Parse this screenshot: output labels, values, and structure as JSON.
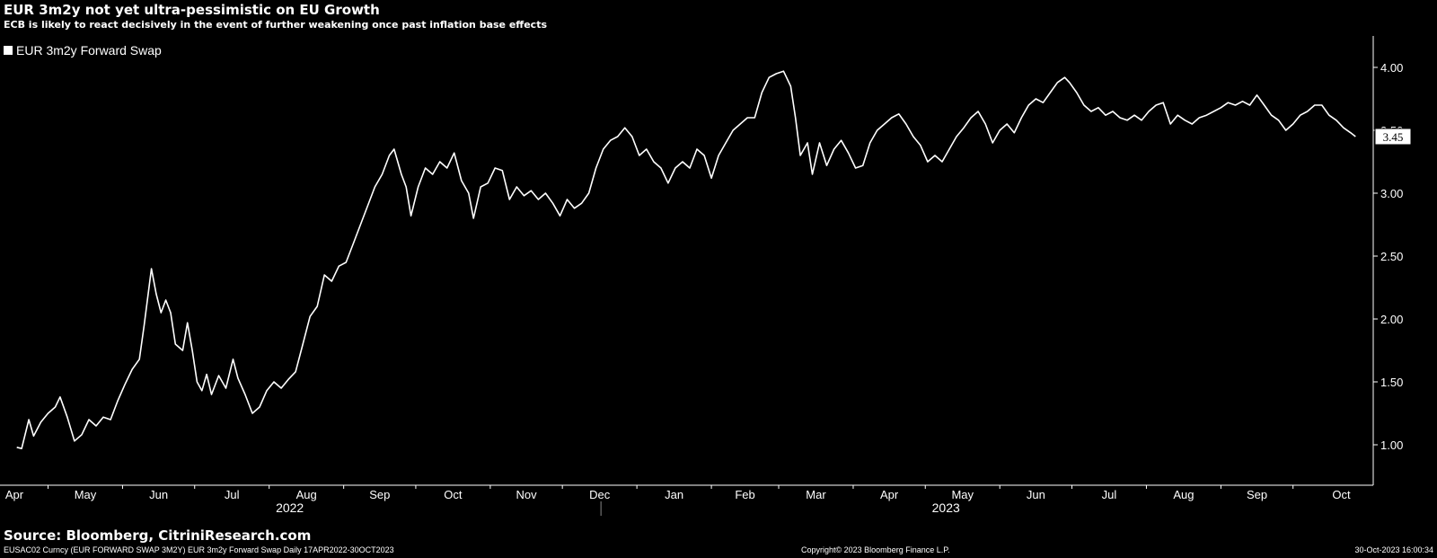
{
  "header": {
    "title": "EUR 3m2y not yet ultra-pessimistic on EU Growth",
    "subtitle": "ECB is likely to react decisively in the event of further weakening once past inflation base effects"
  },
  "legend": {
    "label": "EUR 3m2y Forward Swap",
    "swatch_color": "#ffffff"
  },
  "footer": {
    "source": "Source: Bloomberg, CitriniResearch.com",
    "meta": "EUSAC02 Curncy (EUR FORWARD SWAP 3M2Y) EUR 3m2y Forward Swap  Daily 17APR2022-30OCT2023",
    "copyright": "Copyright© 2023 Bloomberg Finance L.P.",
    "timestamp": "30-Oct-2023 16:00:34"
  },
  "colors": {
    "background": "#000000",
    "line": "#ffffff",
    "axis": "#ffffff"
  },
  "chart_data": {
    "type": "line",
    "title": "EUR 3m2y not yet ultra-pessimistic on EU Growth",
    "subtitle": "ECB is likely to react decisively in the event of further weakening once past inflation base effects",
    "xlabel": "",
    "ylabel": "",
    "y_axis_side": "right",
    "ylim": [
      0.75,
      4.25
    ],
    "yticks": [
      1.0,
      1.5,
      2.0,
      2.5,
      3.0,
      3.5,
      4.0
    ],
    "ytick_labels": [
      "1.00",
      "1.50",
      "2.00",
      "2.50",
      "3.00",
      "3.50",
      "4.00"
    ],
    "xlim": [
      "2022-04-17",
      "2023-10-30"
    ],
    "month_labels": [
      {
        "label": "Apr",
        "date": "2022-04-01"
      },
      {
        "label": "May",
        "date": "2022-05-01"
      },
      {
        "label": "Jun",
        "date": "2022-06-01"
      },
      {
        "label": "Jul",
        "date": "2022-07-01"
      },
      {
        "label": "Aug",
        "date": "2022-08-01"
      },
      {
        "label": "Sep",
        "date": "2022-09-01"
      },
      {
        "label": "Oct",
        "date": "2022-10-01"
      },
      {
        "label": "Nov",
        "date": "2022-11-01"
      },
      {
        "label": "Dec",
        "date": "2022-12-01"
      },
      {
        "label": "Jan",
        "date": "2023-01-01"
      },
      {
        "label": "Feb",
        "date": "2023-02-01"
      },
      {
        "label": "Mar",
        "date": "2023-03-01"
      },
      {
        "label": "Apr",
        "date": "2023-04-01"
      },
      {
        "label": "May",
        "date": "2023-05-01"
      },
      {
        "label": "Jun",
        "date": "2023-06-01"
      },
      {
        "label": "Jul",
        "date": "2023-07-01"
      },
      {
        "label": "Aug",
        "date": "2023-08-01"
      },
      {
        "label": "Sep",
        "date": "2023-09-01"
      },
      {
        "label": "Oct",
        "date": "2023-10-01"
      }
    ],
    "year_labels": [
      {
        "label": "2022",
        "date": "2022-09-01"
      },
      {
        "label": "2023",
        "date": "2023-06-01"
      }
    ],
    "last_value_label": "3.45",
    "grid": false,
    "legend_position": "top-left",
    "series": [
      {
        "name": "EUR 3m2y Forward Swap",
        "points": [
          [
            "2022-04-18",
            0.98
          ],
          [
            "2022-04-20",
            0.97
          ],
          [
            "2022-04-23",
            1.2
          ],
          [
            "2022-04-25",
            1.07
          ],
          [
            "2022-04-28",
            1.18
          ],
          [
            "2022-05-01",
            1.25
          ],
          [
            "2022-05-04",
            1.3
          ],
          [
            "2022-05-06",
            1.38
          ],
          [
            "2022-05-09",
            1.22
          ],
          [
            "2022-05-12",
            1.03
          ],
          [
            "2022-05-15",
            1.08
          ],
          [
            "2022-05-18",
            1.2
          ],
          [
            "2022-05-21",
            1.15
          ],
          [
            "2022-05-24",
            1.22
          ],
          [
            "2022-05-27",
            1.2
          ],
          [
            "2022-05-30",
            1.35
          ],
          [
            "2022-06-02",
            1.48
          ],
          [
            "2022-06-05",
            1.6
          ],
          [
            "2022-06-08",
            1.68
          ],
          [
            "2022-06-10",
            1.95
          ],
          [
            "2022-06-13",
            2.4
          ],
          [
            "2022-06-15",
            2.2
          ],
          [
            "2022-06-17",
            2.05
          ],
          [
            "2022-06-19",
            2.15
          ],
          [
            "2022-06-21",
            2.05
          ],
          [
            "2022-06-23",
            1.8
          ],
          [
            "2022-06-26",
            1.75
          ],
          [
            "2022-06-28",
            1.97
          ],
          [
            "2022-06-30",
            1.75
          ],
          [
            "2022-07-02",
            1.5
          ],
          [
            "2022-07-04",
            1.43
          ],
          [
            "2022-07-06",
            1.56
          ],
          [
            "2022-07-08",
            1.4
          ],
          [
            "2022-07-11",
            1.55
          ],
          [
            "2022-07-14",
            1.45
          ],
          [
            "2022-07-17",
            1.68
          ],
          [
            "2022-07-19",
            1.53
          ],
          [
            "2022-07-22",
            1.4
          ],
          [
            "2022-07-25",
            1.25
          ],
          [
            "2022-07-28",
            1.3
          ],
          [
            "2022-07-31",
            1.43
          ],
          [
            "2022-08-03",
            1.5
          ],
          [
            "2022-08-06",
            1.45
          ],
          [
            "2022-08-09",
            1.52
          ],
          [
            "2022-08-12",
            1.58
          ],
          [
            "2022-08-15",
            1.8
          ],
          [
            "2022-08-18",
            2.02
          ],
          [
            "2022-08-21",
            2.1
          ],
          [
            "2022-08-24",
            2.35
          ],
          [
            "2022-08-27",
            2.3
          ],
          [
            "2022-08-30",
            2.42
          ],
          [
            "2022-09-02",
            2.45
          ],
          [
            "2022-09-05",
            2.6
          ],
          [
            "2022-09-08",
            2.75
          ],
          [
            "2022-09-11",
            2.9
          ],
          [
            "2022-09-14",
            3.05
          ],
          [
            "2022-09-17",
            3.15
          ],
          [
            "2022-09-20",
            3.3
          ],
          [
            "2022-09-22",
            3.35
          ],
          [
            "2022-09-25",
            3.15
          ],
          [
            "2022-09-27",
            3.05
          ],
          [
            "2022-09-29",
            2.82
          ],
          [
            "2022-10-02",
            3.05
          ],
          [
            "2022-10-05",
            3.2
          ],
          [
            "2022-10-08",
            3.15
          ],
          [
            "2022-10-11",
            3.25
          ],
          [
            "2022-10-14",
            3.2
          ],
          [
            "2022-10-17",
            3.32
          ],
          [
            "2022-10-20",
            3.1
          ],
          [
            "2022-10-23",
            3.0
          ],
          [
            "2022-10-25",
            2.8
          ],
          [
            "2022-10-28",
            3.05
          ],
          [
            "2022-10-31",
            3.08
          ],
          [
            "2022-11-03",
            3.2
          ],
          [
            "2022-11-06",
            3.18
          ],
          [
            "2022-11-09",
            2.95
          ],
          [
            "2022-11-12",
            3.05
          ],
          [
            "2022-11-15",
            2.98
          ],
          [
            "2022-11-18",
            3.02
          ],
          [
            "2022-11-21",
            2.95
          ],
          [
            "2022-11-24",
            3.0
          ],
          [
            "2022-11-27",
            2.92
          ],
          [
            "2022-11-30",
            2.82
          ],
          [
            "2022-12-03",
            2.95
          ],
          [
            "2022-12-06",
            2.88
          ],
          [
            "2022-12-09",
            2.92
          ],
          [
            "2022-12-12",
            3.0
          ],
          [
            "2022-12-15",
            3.2
          ],
          [
            "2022-12-18",
            3.35
          ],
          [
            "2022-12-21",
            3.42
          ],
          [
            "2022-12-24",
            3.45
          ],
          [
            "2022-12-27",
            3.52
          ],
          [
            "2022-12-30",
            3.45
          ],
          [
            "2023-01-02",
            3.3
          ],
          [
            "2023-01-05",
            3.35
          ],
          [
            "2023-01-08",
            3.25
          ],
          [
            "2023-01-11",
            3.2
          ],
          [
            "2023-01-14",
            3.08
          ],
          [
            "2023-01-17",
            3.2
          ],
          [
            "2023-01-20",
            3.25
          ],
          [
            "2023-01-23",
            3.2
          ],
          [
            "2023-01-26",
            3.35
          ],
          [
            "2023-01-29",
            3.3
          ],
          [
            "2023-02-01",
            3.12
          ],
          [
            "2023-02-04",
            3.3
          ],
          [
            "2023-02-07",
            3.4
          ],
          [
            "2023-02-10",
            3.5
          ],
          [
            "2023-02-13",
            3.55
          ],
          [
            "2023-02-16",
            3.6
          ],
          [
            "2023-02-19",
            3.6
          ],
          [
            "2023-02-22",
            3.8
          ],
          [
            "2023-02-25",
            3.92
          ],
          [
            "2023-02-28",
            3.95
          ],
          [
            "2023-03-03",
            3.97
          ],
          [
            "2023-03-06",
            3.85
          ],
          [
            "2023-03-08",
            3.6
          ],
          [
            "2023-03-10",
            3.3
          ],
          [
            "2023-03-13",
            3.4
          ],
          [
            "2023-03-15",
            3.15
          ],
          [
            "2023-03-18",
            3.4
          ],
          [
            "2023-03-21",
            3.22
          ],
          [
            "2023-03-24",
            3.35
          ],
          [
            "2023-03-27",
            3.42
          ],
          [
            "2023-03-30",
            3.32
          ],
          [
            "2023-04-02",
            3.2
          ],
          [
            "2023-04-05",
            3.22
          ],
          [
            "2023-04-08",
            3.4
          ],
          [
            "2023-04-11",
            3.5
          ],
          [
            "2023-04-14",
            3.55
          ],
          [
            "2023-04-17",
            3.6
          ],
          [
            "2023-04-20",
            3.63
          ],
          [
            "2023-04-23",
            3.55
          ],
          [
            "2023-04-26",
            3.45
          ],
          [
            "2023-04-29",
            3.38
          ],
          [
            "2023-05-02",
            3.25
          ],
          [
            "2023-05-05",
            3.3
          ],
          [
            "2023-05-08",
            3.25
          ],
          [
            "2023-05-11",
            3.35
          ],
          [
            "2023-05-14",
            3.45
          ],
          [
            "2023-05-17",
            3.52
          ],
          [
            "2023-05-20",
            3.6
          ],
          [
            "2023-05-23",
            3.65
          ],
          [
            "2023-05-26",
            3.55
          ],
          [
            "2023-05-29",
            3.4
          ],
          [
            "2023-06-01",
            3.5
          ],
          [
            "2023-06-04",
            3.55
          ],
          [
            "2023-06-07",
            3.48
          ],
          [
            "2023-06-10",
            3.6
          ],
          [
            "2023-06-13",
            3.7
          ],
          [
            "2023-06-16",
            3.75
          ],
          [
            "2023-06-19",
            3.72
          ],
          [
            "2023-06-22",
            3.8
          ],
          [
            "2023-06-25",
            3.88
          ],
          [
            "2023-06-28",
            3.92
          ],
          [
            "2023-06-30",
            3.88
          ],
          [
            "2023-07-03",
            3.8
          ],
          [
            "2023-07-06",
            3.7
          ],
          [
            "2023-07-09",
            3.65
          ],
          [
            "2023-07-12",
            3.68
          ],
          [
            "2023-07-15",
            3.62
          ],
          [
            "2023-07-18",
            3.65
          ],
          [
            "2023-07-21",
            3.6
          ],
          [
            "2023-07-24",
            3.58
          ],
          [
            "2023-07-27",
            3.62
          ],
          [
            "2023-07-30",
            3.58
          ],
          [
            "2023-08-02",
            3.65
          ],
          [
            "2023-08-05",
            3.7
          ],
          [
            "2023-08-08",
            3.72
          ],
          [
            "2023-08-11",
            3.55
          ],
          [
            "2023-08-14",
            3.62
          ],
          [
            "2023-08-17",
            3.58
          ],
          [
            "2023-08-20",
            3.55
          ],
          [
            "2023-08-23",
            3.6
          ],
          [
            "2023-08-26",
            3.62
          ],
          [
            "2023-08-29",
            3.65
          ],
          [
            "2023-09-01",
            3.68
          ],
          [
            "2023-09-04",
            3.72
          ],
          [
            "2023-09-07",
            3.7
          ],
          [
            "2023-09-10",
            3.73
          ],
          [
            "2023-09-13",
            3.7
          ],
          [
            "2023-09-16",
            3.78
          ],
          [
            "2023-09-19",
            3.7
          ],
          [
            "2023-09-22",
            3.62
          ],
          [
            "2023-09-25",
            3.58
          ],
          [
            "2023-09-28",
            3.5
          ],
          [
            "2023-10-01",
            3.55
          ],
          [
            "2023-10-04",
            3.62
          ],
          [
            "2023-10-07",
            3.65
          ],
          [
            "2023-10-10",
            3.7
          ],
          [
            "2023-10-13",
            3.7
          ],
          [
            "2023-10-16",
            3.62
          ],
          [
            "2023-10-19",
            3.58
          ],
          [
            "2023-10-22",
            3.52
          ],
          [
            "2023-10-25",
            3.48
          ],
          [
            "2023-10-27",
            3.45
          ]
        ]
      }
    ]
  }
}
